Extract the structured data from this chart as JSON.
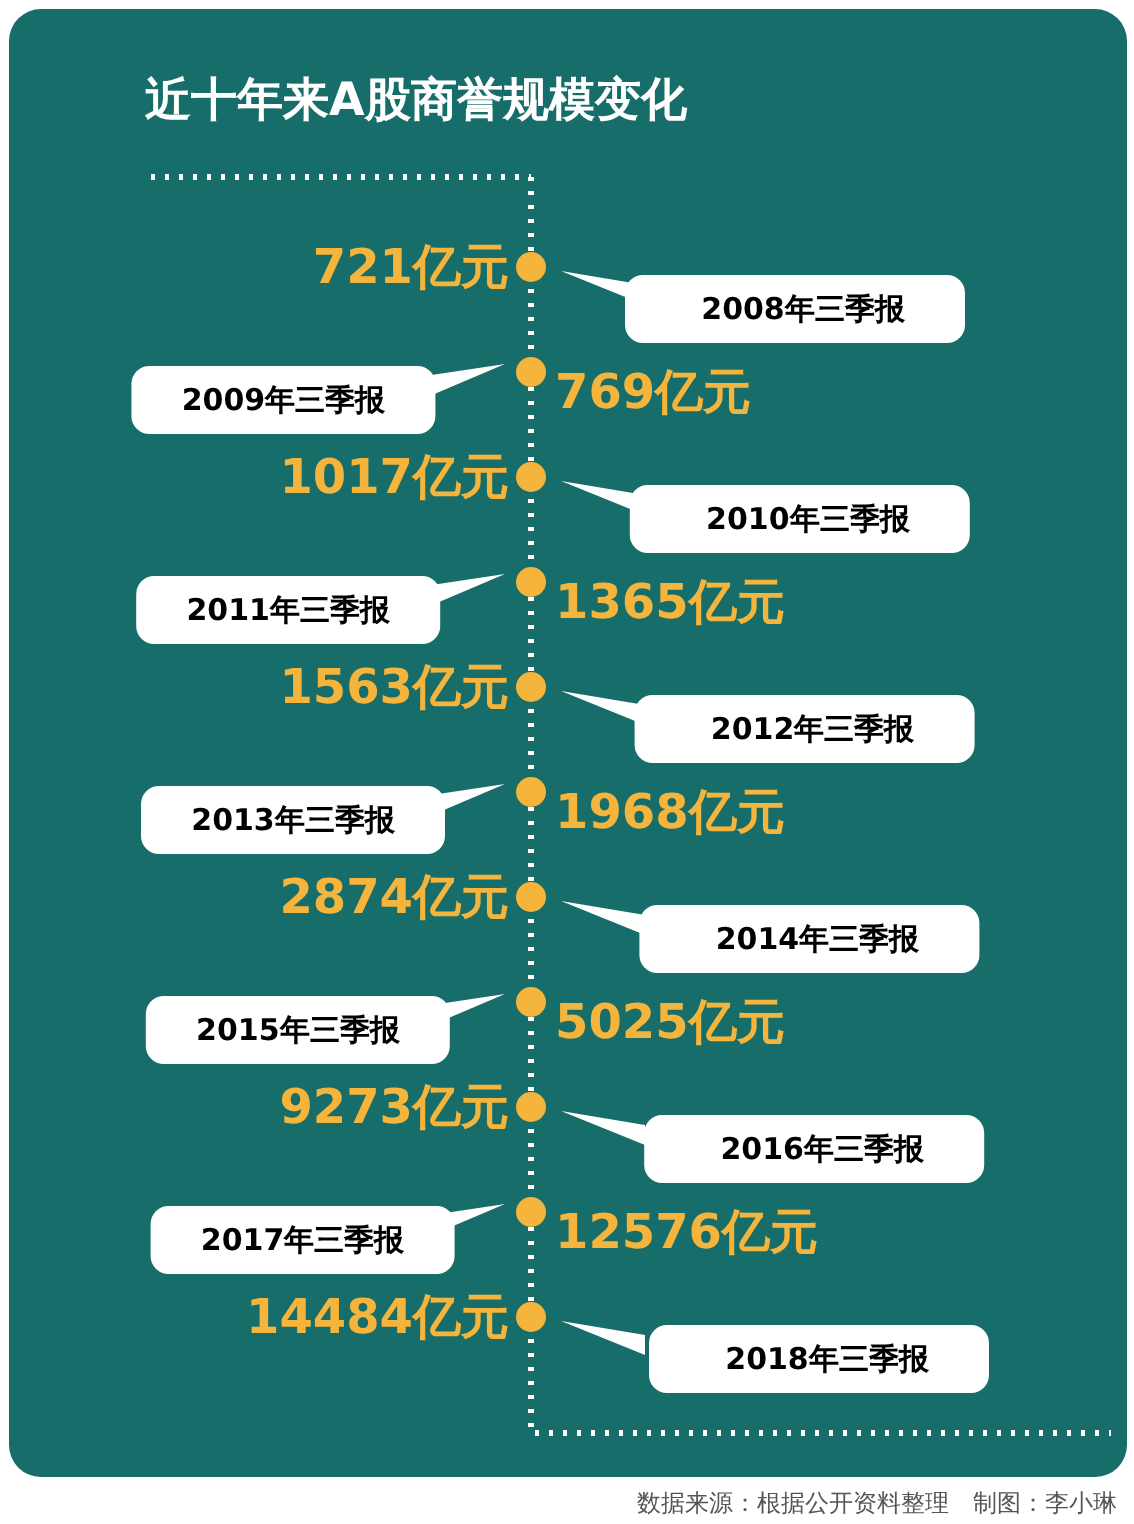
{
  "chart_data": {
    "type": "other",
    "title": "近十年来A股商誉规模变化",
    "color": "#f5b43b",
    "categories": [
      "2008年三季报",
      "2009年三季报",
      "2010年三季报",
      "2011年三季报",
      "2012年三季报",
      "2013年三季报",
      "2014年三季报",
      "2015年三季报",
      "2016年三季报",
      "2017年三季报",
      "2018年三季报"
    ],
    "values": [
      721,
      769,
      1017,
      1365,
      1563,
      1968,
      2874,
      5025,
      9273,
      12576,
      14484
    ],
    "value_labels": [
      "721亿元",
      "769亿元",
      "1017亿元",
      "1365亿元",
      "1563亿元",
      "1968亿元",
      "2874亿元",
      "5025亿元",
      "9273亿元",
      "12576亿元",
      "14484亿元"
    ],
    "annotations": [
      "数据来源：根据公开资料整理　制图：李小琳"
    ]
  }
}
